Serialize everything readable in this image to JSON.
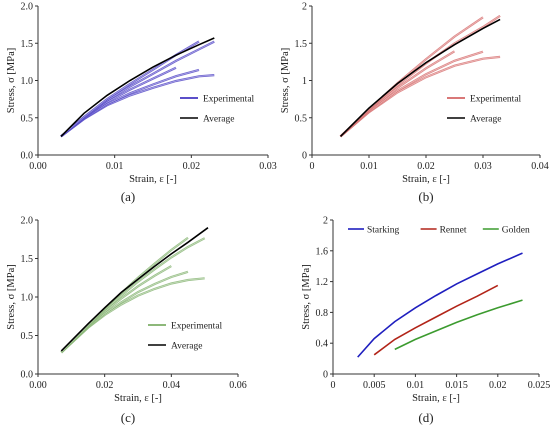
{
  "chart_data": [
    {
      "id": "a",
      "type": "line",
      "panel_label": "(a)",
      "xlabel": "Strain, ε [-]",
      "ylabel": "Stress, σ [MPa]",
      "xlim": [
        0,
        0.03
      ],
      "ylim": [
        0,
        2.0
      ],
      "xticks": [
        0,
        0.01,
        0.02,
        0.03
      ],
      "xtick_labels": [
        "0.00",
        "0.01",
        "0.02",
        "0.03"
      ],
      "yticks": [
        0,
        0.5,
        1.0,
        1.5,
        2.0
      ],
      "ytick_labels": [
        "0.0",
        "0.5",
        "1.0",
        "1.5",
        "2.0"
      ],
      "legend_position": "lower-right",
      "colors": {
        "experimental": "#5b4fc9",
        "average": "#000000"
      },
      "series": [
        {
          "name": "Experimental",
          "role": "experimental",
          "variants": 5,
          "x": [
            0.003,
            0.006,
            0.009,
            0.012,
            0.015,
            0.018,
            0.021,
            0.023
          ],
          "y": [
            0.25,
            0.5,
            0.72,
            0.9,
            1.06,
            1.22,
            1.36,
            1.45
          ]
        },
        {
          "name": "Average",
          "role": "average",
          "x": [
            0.003,
            0.006,
            0.009,
            0.012,
            0.015,
            0.018,
            0.021,
            0.023
          ],
          "y": [
            0.25,
            0.56,
            0.8,
            1.0,
            1.18,
            1.34,
            1.48,
            1.57
          ]
        }
      ]
    },
    {
      "id": "b",
      "type": "line",
      "panel_label": "(b)",
      "xlabel": "Strain, ε [-]",
      "ylabel": "Stress, σ [MPa]",
      "xlim": [
        0,
        0.04
      ],
      "ylim": [
        0,
        2
      ],
      "xticks": [
        0,
        0.01,
        0.02,
        0.03,
        0.04
      ],
      "xtick_labels": [
        "0",
        "0.01",
        "0.02",
        "0.03",
        "0.04"
      ],
      "yticks": [
        0,
        0.5,
        1,
        1.5,
        2
      ],
      "ytick_labels": [
        "0",
        "0.5",
        "1",
        "1.5",
        "2"
      ],
      "legend_position": "lower-right",
      "colors": {
        "experimental": "#d97878",
        "average": "#000000"
      },
      "series": [
        {
          "name": "Experimental",
          "role": "experimental",
          "variants": 5,
          "x": [
            0.005,
            0.01,
            0.015,
            0.02,
            0.025,
            0.03,
            0.033
          ],
          "y": [
            0.25,
            0.6,
            0.92,
            1.2,
            1.45,
            1.65,
            1.78
          ]
        },
        {
          "name": "Average",
          "role": "average",
          "x": [
            0.005,
            0.01,
            0.015,
            0.02,
            0.025,
            0.03,
            0.033
          ],
          "y": [
            0.25,
            0.63,
            0.96,
            1.24,
            1.48,
            1.7,
            1.82
          ]
        }
      ]
    },
    {
      "id": "c",
      "type": "line",
      "panel_label": "(c)",
      "xlabel": "Strain, ε [-]",
      "ylabel": "Stress, σ [MPa]",
      "xlim": [
        0,
        0.06
      ],
      "ylim": [
        0,
        2.0
      ],
      "xticks": [
        0,
        0.02,
        0.04,
        0.06
      ],
      "xtick_labels": [
        "0.00",
        "0.02",
        "0.04",
        "0.06"
      ],
      "yticks": [
        0,
        0.5,
        1.0,
        1.5,
        2.0
      ],
      "ytick_labels": [
        "0.0",
        "0.5",
        "1.0",
        "1.5",
        "2.0"
      ],
      "legend_position": "lower-right",
      "colors": {
        "experimental": "#8db87a",
        "average": "#000000"
      },
      "series": [
        {
          "name": "Experimental",
          "role": "experimental",
          "variants": 5,
          "x": [
            0.007,
            0.015,
            0.02,
            0.025,
            0.03,
            0.035,
            0.04,
            0.045,
            0.05
          ],
          "y": [
            0.28,
            0.62,
            0.82,
            1.0,
            1.17,
            1.32,
            1.46,
            1.58,
            1.68
          ]
        },
        {
          "name": "Average",
          "role": "average",
          "x": [
            0.007,
            0.015,
            0.02,
            0.025,
            0.03,
            0.035,
            0.04,
            0.045,
            0.051
          ],
          "y": [
            0.3,
            0.65,
            0.86,
            1.06,
            1.23,
            1.4,
            1.56,
            1.71,
            1.9
          ]
        }
      ]
    },
    {
      "id": "d",
      "type": "line",
      "panel_label": "(d)",
      "xlabel": "Strain, ε [-]",
      "ylabel": "Stress, σ [MPa]",
      "xlim": [
        0,
        0.025
      ],
      "ylim": [
        0,
        2
      ],
      "xticks": [
        0,
        0.005,
        0.01,
        0.015,
        0.02,
        0.025
      ],
      "xtick_labels": [
        "0",
        "0.005",
        "0.01",
        "0.015",
        "0.02",
        "0.025"
      ],
      "yticks": [
        0,
        0.4,
        0.8,
        1.2,
        1.6,
        2
      ],
      "ytick_labels": [
        "0",
        "0.4",
        "0.8",
        "1.2",
        "1.6",
        "2"
      ],
      "legend_position": "top",
      "series": [
        {
          "name": "Starking",
          "color": "#1f1fbf",
          "x": [
            0.003,
            0.005,
            0.0075,
            0.01,
            0.0125,
            0.015,
            0.0175,
            0.02,
            0.023
          ],
          "y": [
            0.22,
            0.46,
            0.68,
            0.86,
            1.02,
            1.17,
            1.3,
            1.43,
            1.57
          ]
        },
        {
          "name": "Rennet",
          "color": "#b22418",
          "x": [
            0.005,
            0.0075,
            0.01,
            0.0125,
            0.015,
            0.0175,
            0.02
          ],
          "y": [
            0.25,
            0.45,
            0.6,
            0.74,
            0.88,
            1.01,
            1.15
          ]
        },
        {
          "name": "Golden",
          "color": "#3c9b2f",
          "x": [
            0.0075,
            0.01,
            0.0125,
            0.015,
            0.0175,
            0.02,
            0.023
          ],
          "y": [
            0.32,
            0.45,
            0.56,
            0.67,
            0.77,
            0.86,
            0.96
          ]
        }
      ]
    }
  ]
}
